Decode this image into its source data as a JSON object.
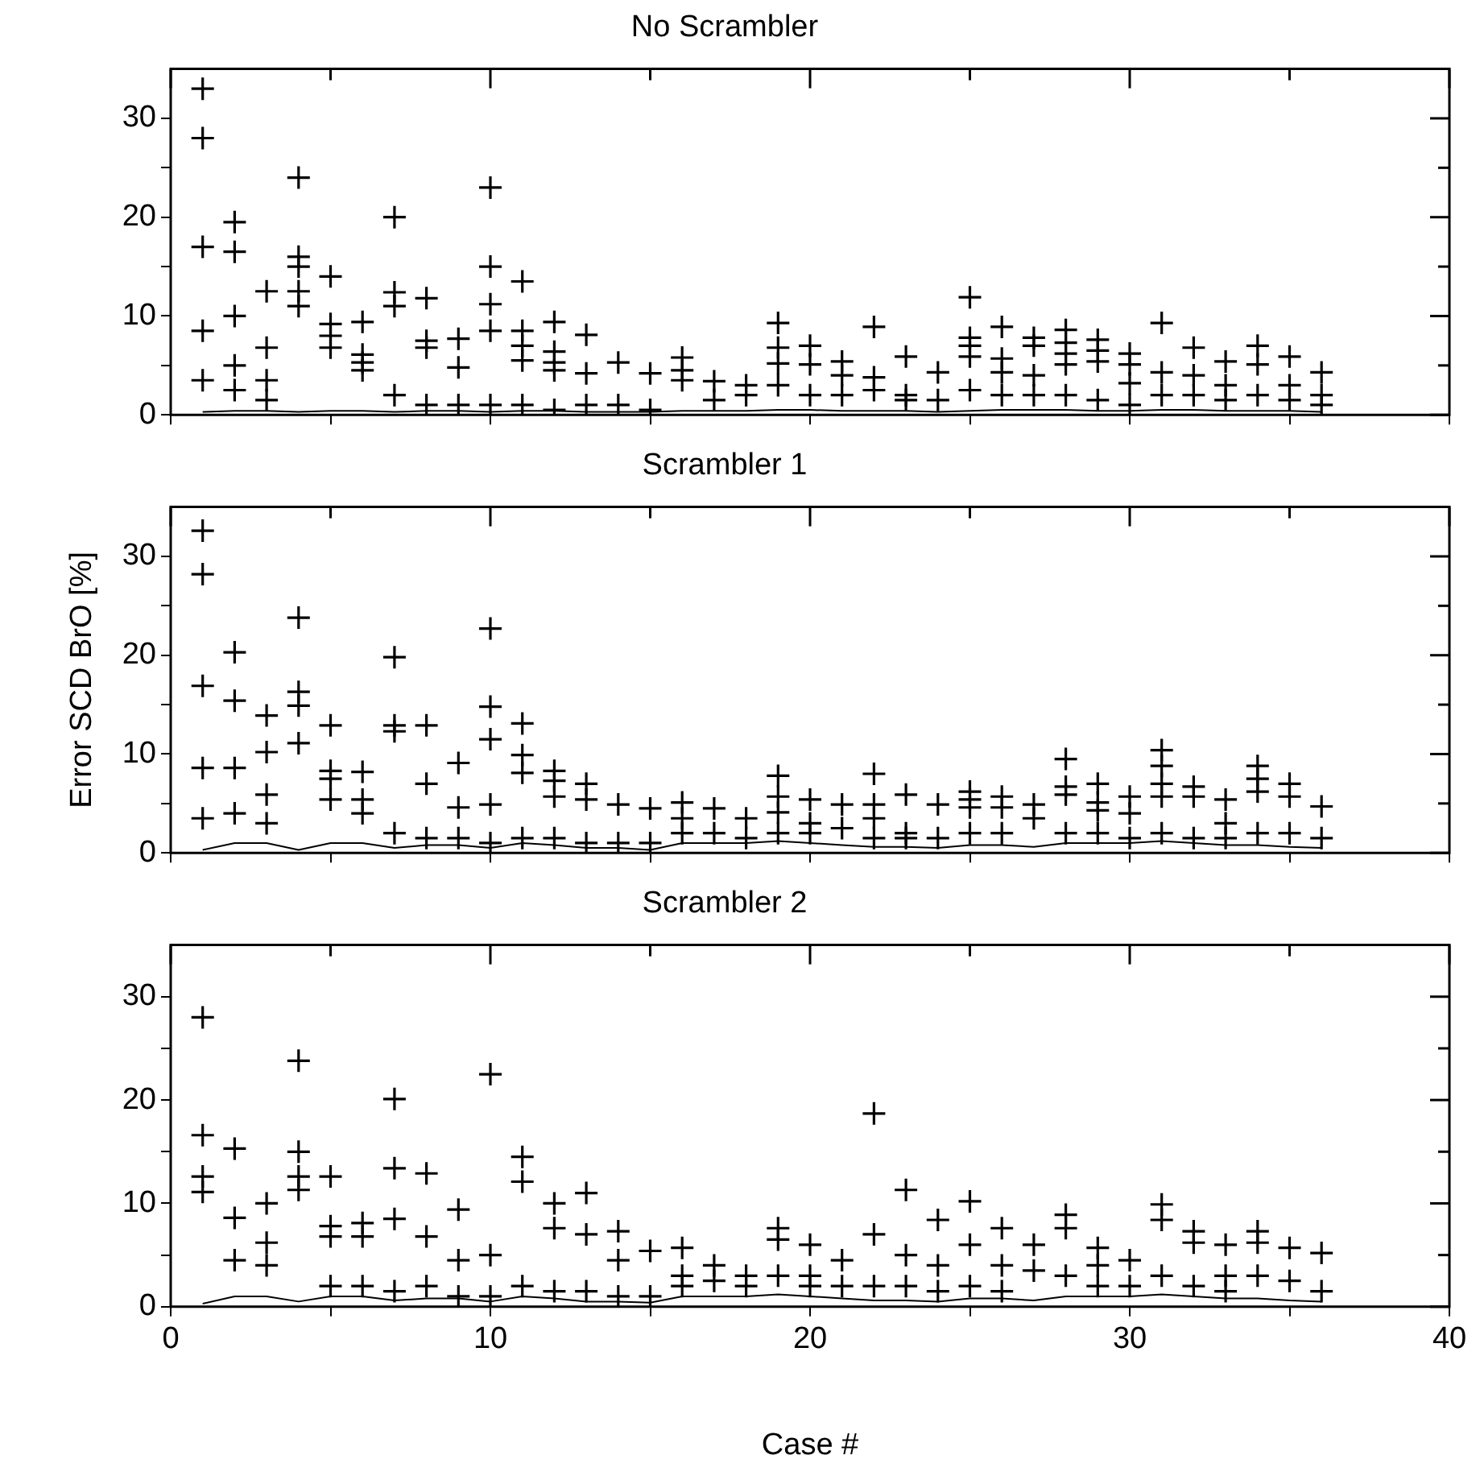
{
  "chart_data": [
    {
      "type": "scatter",
      "title": "No Scrambler",
      "marker": "cross",
      "grid": false,
      "tick_labels": "y",
      "xlim": [
        0,
        40
      ],
      "xticks": [
        0,
        {
          "value": 5,
          "label": null
        },
        10,
        {
          "value": 15,
          "label": null
        },
        20,
        {
          "value": 25,
          "label": null
        },
        30,
        {
          "value": 35,
          "label": null
        },
        40
      ],
      "ylim": [
        0,
        35
      ],
      "yticks": [
        0,
        {
          "value": 5,
          "label": null
        },
        10,
        {
          "value": 15,
          "label": null
        },
        20,
        {
          "value": 25,
          "label": null
        },
        30
      ],
      "series": [
        {
          "color": "#000000",
          "x": [
            1,
            1,
            1,
            1,
            1,
            2,
            2,
            2,
            2,
            2,
            3,
            3,
            3,
            3,
            4,
            4,
            4,
            4,
            4,
            5,
            5,
            5,
            5,
            6,
            6,
            6,
            6,
            7,
            7,
            7,
            7,
            8,
            8,
            8,
            8,
            9,
            9,
            9,
            10,
            10,
            10,
            10,
            10,
            11,
            11,
            11,
            11,
            11,
            12,
            12,
            12,
            12,
            12,
            13,
            13,
            13,
            14,
            14,
            15,
            15,
            16,
            16,
            16,
            17,
            17,
            18,
            18,
            19,
            19,
            19,
            19,
            20,
            20,
            20,
            21,
            21,
            21,
            22,
            22,
            22,
            23,
            23,
            23,
            24,
            24,
            25,
            25,
            25,
            25,
            25,
            26,
            26,
            26,
            26,
            27,
            27,
            27,
            27,
            28,
            28,
            28,
            28,
            28,
            29,
            29,
            29,
            29,
            30,
            30,
            30,
            30,
            31,
            31,
            31,
            32,
            32,
            32,
            33,
            33,
            33,
            34,
            34,
            34,
            35,
            35,
            35,
            36,
            36,
            36
          ],
          "values": [
            33,
            28,
            17,
            8.5,
            3.5,
            19.5,
            16.5,
            10,
            5,
            2.5,
            12.5,
            6.8,
            3.5,
            1.5,
            24,
            16,
            15,
            12.5,
            11,
            14,
            9.2,
            8,
            6.8,
            9.4,
            6.1,
            5.3,
            4.5,
            20,
            12.4,
            11,
            2,
            11.8,
            7.5,
            6.8,
            1,
            7.7,
            4.8,
            1,
            23,
            15,
            11.2,
            8.5,
            1,
            13.5,
            8.5,
            7,
            5.5,
            1,
            9.4,
            6.4,
            5.3,
            4.5,
            0.5,
            8.1,
            4.2,
            1,
            5.3,
            1,
            4.2,
            0.5,
            5.8,
            4.5,
            3.5,
            3.4,
            1.5,
            3,
            2,
            9.3,
            6.8,
            5.2,
            3,
            7,
            5.1,
            2,
            5.4,
            4,
            2,
            8.9,
            3.8,
            2.5,
            5.9,
            2,
            1.5,
            4.3,
            1.5,
            11.9,
            7.8,
            7,
            5.9,
            2.5,
            8.9,
            5.7,
            4.3,
            2,
            7.8,
            7,
            4,
            2,
            8.6,
            7.3,
            6.2,
            5.1,
            2,
            7.6,
            6.5,
            5.4,
            1.5,
            6.2,
            5.1,
            3.2,
            1,
            9.3,
            4.3,
            2,
            6.8,
            4,
            2,
            5.4,
            3,
            1.5,
            7,
            5.1,
            2,
            5.9,
            3,
            1.5,
            4.3,
            2,
            1
          ]
        },
        {
          "type": "line",
          "marker": "none",
          "color": "#000000",
          "x": [
            1,
            2,
            3,
            4,
            5,
            6,
            7,
            8,
            9,
            10,
            11,
            12,
            13,
            14,
            15,
            16,
            17,
            18,
            19,
            20,
            21,
            22,
            23,
            24,
            25,
            26,
            27,
            28,
            29,
            30,
            31,
            32,
            33,
            34,
            35,
            36
          ],
          "values": [
            0.3,
            0.4,
            0.4,
            0.3,
            0.4,
            0.4,
            0.3,
            0.4,
            0.4,
            0.3,
            0.4,
            0.4,
            0.3,
            0.3,
            0.3,
            0.4,
            0.4,
            0.4,
            0.5,
            0.5,
            0.4,
            0.4,
            0.4,
            0.3,
            0.4,
            0.5,
            0.5,
            0.5,
            0.4,
            0.4,
            0.5,
            0.5,
            0.4,
            0.4,
            0.4,
            0.3
          ]
        }
      ]
    },
    {
      "type": "scatter",
      "title": "Scrambler 1",
      "ylabel": "Error SCD BrO [%]",
      "marker": "cross",
      "grid": false,
      "tick_labels": "y",
      "xlim": [
        0,
        40
      ],
      "xticks": [
        0,
        {
          "value": 5,
          "label": null
        },
        10,
        {
          "value": 15,
          "label": null
        },
        20,
        {
          "value": 25,
          "label": null
        },
        30,
        {
          "value": 35,
          "label": null
        },
        40
      ],
      "ylim": [
        0,
        35
      ],
      "yticks": [
        0,
        {
          "value": 5,
          "label": null
        },
        10,
        {
          "value": 15,
          "label": null
        },
        20,
        {
          "value": 25,
          "label": null
        },
        30
      ],
      "series": [
        {
          "color": "#000000",
          "x": [
            1,
            1,
            1,
            1,
            1,
            2,
            2,
            2,
            2,
            3,
            3,
            3,
            3,
            4,
            4,
            4,
            4,
            5,
            5,
            5,
            5,
            6,
            6,
            6,
            7,
            7,
            7,
            7,
            8,
            8,
            8,
            9,
            9,
            9,
            10,
            10,
            10,
            10,
            10,
            11,
            11,
            11,
            11,
            12,
            12,
            12,
            12,
            13,
            13,
            13,
            14,
            14,
            15,
            15,
            16,
            16,
            16,
            17,
            17,
            18,
            18,
            19,
            19,
            19,
            19,
            20,
            20,
            20,
            21,
            21,
            22,
            22,
            22,
            22,
            23,
            23,
            23,
            24,
            24,
            25,
            25,
            25,
            25,
            26,
            26,
            26,
            27,
            27,
            28,
            28,
            28,
            28,
            29,
            29,
            29,
            29,
            30,
            30,
            30,
            31,
            31,
            31,
            31,
            31,
            32,
            32,
            32,
            33,
            33,
            33,
            34,
            34,
            34,
            34,
            35,
            35,
            35,
            36,
            36
          ],
          "values": [
            32.6,
            28.2,
            16.9,
            8.6,
            3.5,
            20.3,
            15.4,
            8.6,
            4,
            13.9,
            10.2,
            5.9,
            3,
            23.8,
            16.3,
            14.9,
            11.1,
            12.9,
            8.3,
            7.5,
            5.4,
            8.2,
            5.4,
            4,
            19.8,
            12.9,
            12.3,
            2,
            12.9,
            7,
            1.5,
            9.1,
            4.6,
            1.5,
            22.7,
            14.8,
            11.5,
            4.9,
            1,
            13.1,
            9.9,
            8.1,
            1.5,
            8.3,
            7.3,
            5.7,
            1.5,
            7,
            5.4,
            1,
            4.9,
            1,
            4.5,
            1,
            5.1,
            3.5,
            2,
            4.5,
            2,
            3.5,
            1.5,
            7.8,
            5.7,
            4.1,
            2,
            5.4,
            3,
            2,
            4.9,
            2.5,
            8,
            4.9,
            3.5,
            1.5,
            5.9,
            2,
            1.5,
            4.9,
            1.5,
            6.2,
            5.4,
            4.6,
            2,
            5.7,
            4.6,
            2,
            4.9,
            3.5,
            9.5,
            6.7,
            5.9,
            2,
            7,
            5.1,
            4.3,
            2,
            5.7,
            4,
            1.5,
            10.4,
            8.8,
            7,
            5.7,
            2,
            6.7,
            5.7,
            1.5,
            5.4,
            3,
            1.5,
            8.8,
            7.5,
            6.2,
            2,
            7,
            5.7,
            2,
            4.7,
            1.5
          ]
        },
        {
          "type": "line",
          "marker": "none",
          "color": "#000000",
          "x": [
            1,
            2,
            3,
            4,
            5,
            6,
            7,
            8,
            9,
            10,
            11,
            12,
            13,
            14,
            15,
            16,
            17,
            18,
            19,
            20,
            21,
            22,
            23,
            24,
            25,
            26,
            27,
            28,
            29,
            30,
            31,
            32,
            33,
            34,
            35,
            36
          ],
          "values": [
            0.3,
            1,
            1,
            0.3,
            1,
            1,
            0.5,
            0.8,
            0.8,
            0.5,
            1,
            0.8,
            0.5,
            0.5,
            0.3,
            1,
            1,
            1,
            1.2,
            1,
            0.8,
            0.6,
            0.6,
            0.5,
            0.8,
            0.8,
            0.6,
            1,
            1,
            1,
            1.2,
            1,
            0.8,
            0.8,
            0.6,
            0.5
          ]
        }
      ]
    },
    {
      "type": "scatter",
      "title": "Scrambler 2",
      "xlabel": "Case #",
      "marker": "cross",
      "grid": false,
      "xlim": [
        0,
        40
      ],
      "xticks": [
        0,
        {
          "value": 5,
          "label": null
        },
        10,
        {
          "value": 15,
          "label": null
        },
        20,
        {
          "value": 25,
          "label": null
        },
        30,
        {
          "value": 35,
          "label": null
        },
        40
      ],
      "ylim": [
        0,
        35
      ],
      "yticks": [
        0,
        {
          "value": 5,
          "label": null
        },
        10,
        {
          "value": 15,
          "label": null
        },
        20,
        {
          "value": 25,
          "label": null
        },
        30
      ],
      "series": [
        {
          "color": "#000000",
          "x": [
            1,
            1,
            1,
            1,
            2,
            2,
            2,
            3,
            3,
            3,
            4,
            4,
            4,
            4,
            5,
            5,
            5,
            5,
            6,
            6,
            6,
            7,
            7,
            7,
            7,
            8,
            8,
            8,
            9,
            9,
            9,
            10,
            10,
            10,
            11,
            11,
            11,
            12,
            12,
            12,
            13,
            13,
            13,
            14,
            14,
            14,
            15,
            15,
            16,
            16,
            16,
            17,
            17,
            18,
            18,
            19,
            19,
            19,
            20,
            20,
            20,
            21,
            21,
            22,
            22,
            22,
            23,
            23,
            23,
            24,
            24,
            24,
            25,
            25,
            25,
            26,
            26,
            26,
            27,
            27,
            28,
            28,
            28,
            29,
            29,
            29,
            30,
            30,
            31,
            31,
            31,
            32,
            32,
            32,
            33,
            33,
            33,
            34,
            34,
            34,
            35,
            35,
            36,
            36
          ],
          "values": [
            28,
            16.6,
            12.6,
            11.1,
            15.3,
            8.6,
            4.5,
            10,
            6.2,
            4,
            23.8,
            15,
            12.6,
            11.3,
            12.6,
            7.8,
            6.8,
            2,
            8.1,
            6.8,
            2,
            20.1,
            13.4,
            8.5,
            1.5,
            12.9,
            6.8,
            2,
            9.4,
            4.5,
            1,
            22.5,
            5,
            1,
            14.5,
            12.1,
            2,
            10,
            7.6,
            1.5,
            11,
            7,
            1.5,
            7.3,
            4.5,
            1,
            5.4,
            1,
            5.7,
            3,
            2,
            4,
            2.5,
            3,
            2,
            7.6,
            6.5,
            3,
            6,
            3,
            2,
            4.5,
            2,
            18.7,
            7,
            2,
            11.3,
            5,
            2,
            8.4,
            4,
            1.5,
            10.2,
            6,
            2,
            7.6,
            4,
            1.5,
            6,
            3.5,
            8.9,
            7.6,
            3,
            5.7,
            4,
            2,
            4.5,
            2,
            9.9,
            8.4,
            3,
            7.3,
            6.2,
            2,
            6,
            3,
            1.5,
            7.3,
            6.2,
            3,
            5.7,
            2.5,
            5.2,
            1.5
          ]
        },
        {
          "type": "line",
          "marker": "none",
          "color": "#000000",
          "x": [
            1,
            2,
            3,
            4,
            5,
            6,
            7,
            8,
            9,
            10,
            11,
            12,
            13,
            14,
            15,
            16,
            17,
            18,
            19,
            20,
            21,
            22,
            23,
            24,
            25,
            26,
            27,
            28,
            29,
            30,
            31,
            32,
            33,
            34,
            35,
            36
          ],
          "values": [
            0.3,
            1,
            1,
            0.5,
            1,
            1,
            0.6,
            0.8,
            0.8,
            0.5,
            1,
            0.8,
            0.5,
            0.5,
            0.4,
            1,
            1,
            1,
            1.2,
            1,
            0.8,
            0.6,
            0.6,
            0.5,
            0.8,
            0.8,
            0.6,
            1,
            1,
            1,
            1.2,
            1,
            0.8,
            0.8,
            0.6,
            0.5
          ]
        }
      ]
    }
  ]
}
